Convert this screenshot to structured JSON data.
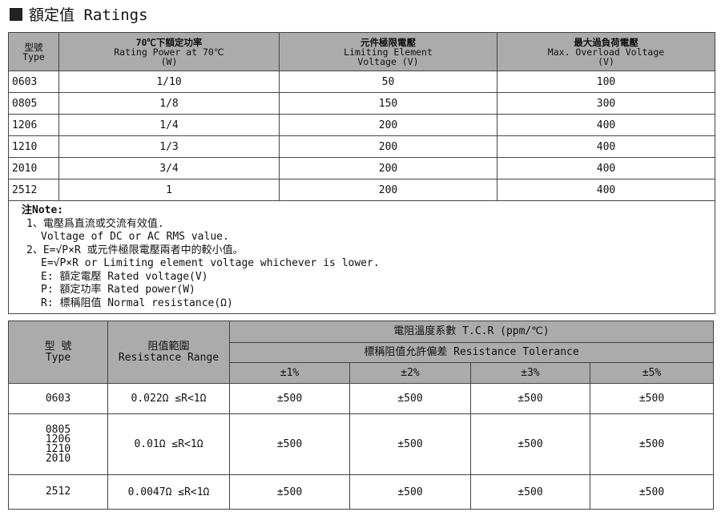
{
  "title": "額定值 Ratings",
  "ratings": {
    "headers": [
      [
        "型號",
        "Type",
        ""
      ],
      [
        "70℃下額定功率",
        "Rating Power  at 70℃",
        "(W)"
      ],
      [
        "元件極限電壓",
        "Limiting Element",
        "Voltage (V)"
      ],
      [
        "最大過負荷電壓",
        "Max. Overload Voltage",
        "(V)"
      ]
    ],
    "rows": [
      [
        "0603",
        "1/10",
        "50",
        "100"
      ],
      [
        "0805",
        "1/8",
        "150",
        "300"
      ],
      [
        "1206",
        "1/4",
        "200",
        "400"
      ],
      [
        "1210",
        "1/3",
        "200",
        "400"
      ],
      [
        "2010",
        "3/4",
        "200",
        "400"
      ],
      [
        "2512",
        "1",
        "200",
        "400"
      ]
    ],
    "note": {
      "heading": "注Note:",
      "lines": [
        "1、電壓爲直流或交流有效值.",
        "Voltage of DC or AC RMS value.",
        "2、E=√P×R 或元件極限電壓兩者中的較小值。",
        "E=√P×R or Limiting element voltage whichever is lower.",
        "E: 額定電壓 Rated voltage(V)",
        "P: 額定功率 Rated power(W)",
        "R: 標稱阻值 Normal resistance(Ω)"
      ]
    }
  },
  "tcr": {
    "type_header": [
      "型 號",
      "Type"
    ],
    "range_header": [
      "阻值範圍",
      "Resistance Range"
    ],
    "tcr_header": "電阻溫度系數  T.C.R (ppm/℃)",
    "tol_header": "標稱阻值允許偏差   Resistance Tolerance",
    "tolerances": [
      "±1%",
      "±2%",
      "±3%",
      "±5%"
    ],
    "rows": [
      {
        "type": "0603",
        "range": "0.022Ω ≤R<1Ω",
        "values": [
          "±500",
          "±500",
          "±500",
          "±500"
        ]
      },
      {
        "type": "0805\n1206\n1210\n2010",
        "range": "0.01Ω ≤R<1Ω",
        "values": [
          "±500",
          "±500",
          "±500",
          "±500"
        ]
      },
      {
        "type": "2512",
        "range": "0.0047Ω ≤R<1Ω",
        "values": [
          "±500",
          "±500",
          "±500",
          "±500"
        ]
      }
    ]
  }
}
